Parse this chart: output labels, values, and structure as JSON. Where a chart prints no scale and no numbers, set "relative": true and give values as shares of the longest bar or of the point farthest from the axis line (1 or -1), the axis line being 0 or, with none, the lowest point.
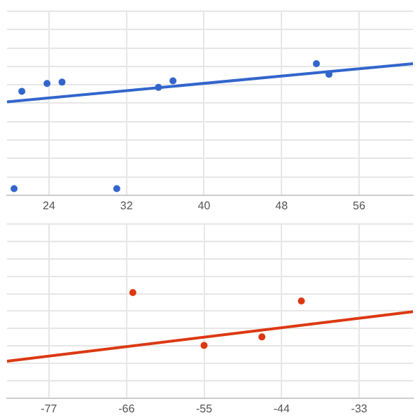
{
  "chart_data": [
    {
      "type": "scatter",
      "relative": true,
      "grid": true,
      "xlim": [
        19.67,
        61.57
      ],
      "xticks": [
        24,
        32,
        40,
        48,
        56
      ],
      "series": [
        {
          "type": "scatter",
          "marker": "circle",
          "color": "#3366cc",
          "x": [
            20.4,
            21.2,
            23.8,
            25.35,
            31.0,
            35.3,
            36.8,
            51.6,
            52.9
          ],
          "values": [
            0.05,
            0.79,
            0.85,
            0.86,
            0.05,
            0.82,
            0.87,
            1.0,
            0.92
          ]
        },
        {
          "type": "line",
          "color": "#3366cc",
          "x": [
            19.67,
            61.57
          ],
          "values": [
            0.71,
            1.0
          ]
        }
      ]
    },
    {
      "type": "scatter",
      "relative": true,
      "grid": true,
      "xlim": [
        -82.95,
        -25.37
      ],
      "xticks": [
        -77,
        -66,
        -55,
        -44,
        -33
      ],
      "series": [
        {
          "type": "scatter",
          "marker": "circle",
          "color": "#dc3912",
          "x": [
            -65.1,
            -55.0,
            -46.8,
            -41.2
          ],
          "values": [
            1.0,
            0.5,
            0.58,
            0.92
          ]
        },
        {
          "type": "line",
          "color": "#dc3912",
          "x": [
            -82.95,
            -25.37
          ],
          "values": [
            0.35,
            0.82
          ]
        }
      ]
    }
  ]
}
